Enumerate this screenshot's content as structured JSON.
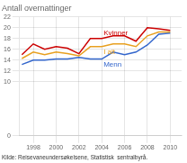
{
  "chart_data": {
    "type": "line",
    "title": "Antall overnattinger",
    "annotations": [
      "Kilde: Reisevaneundersøkelsene, Statistisk  sentralbyrå."
    ],
    "x": [
      1997,
      1998,
      1999,
      2000,
      2001,
      2002,
      2003,
      2004,
      2005,
      2006,
      2007,
      2008,
      2009,
      2010
    ],
    "series": [
      {
        "name": "Kvinner",
        "color": "#cc0000",
        "values": [
          15.0,
          17.0,
          16.0,
          16.5,
          16.2,
          15.2,
          18.0,
          18.0,
          18.5,
          18.5,
          17.5,
          20.0,
          19.8,
          19.5
        ]
      },
      {
        "name": "I alt",
        "color": "#e8a020",
        "values": [
          14.3,
          15.5,
          15.0,
          15.5,
          15.2,
          14.8,
          16.5,
          16.5,
          17.0,
          17.0,
          16.5,
          18.5,
          19.2,
          19.2
        ]
      },
      {
        "name": "Menn",
        "color": "#3366cc",
        "values": [
          13.2,
          14.0,
          14.0,
          14.2,
          14.2,
          14.5,
          14.2,
          14.2,
          15.5,
          15.0,
          15.5,
          16.8,
          18.8,
          19.0
        ]
      }
    ],
    "xlim": [
      1996.8,
      2011.0
    ],
    "xticks": [
      1998,
      2000,
      2002,
      2004,
      2006,
      2008,
      2010
    ],
    "ylim": [
      0,
      22
    ],
    "yticks": [
      0,
      10,
      12,
      14,
      16,
      18,
      20,
      22
    ],
    "grid": true
  }
}
